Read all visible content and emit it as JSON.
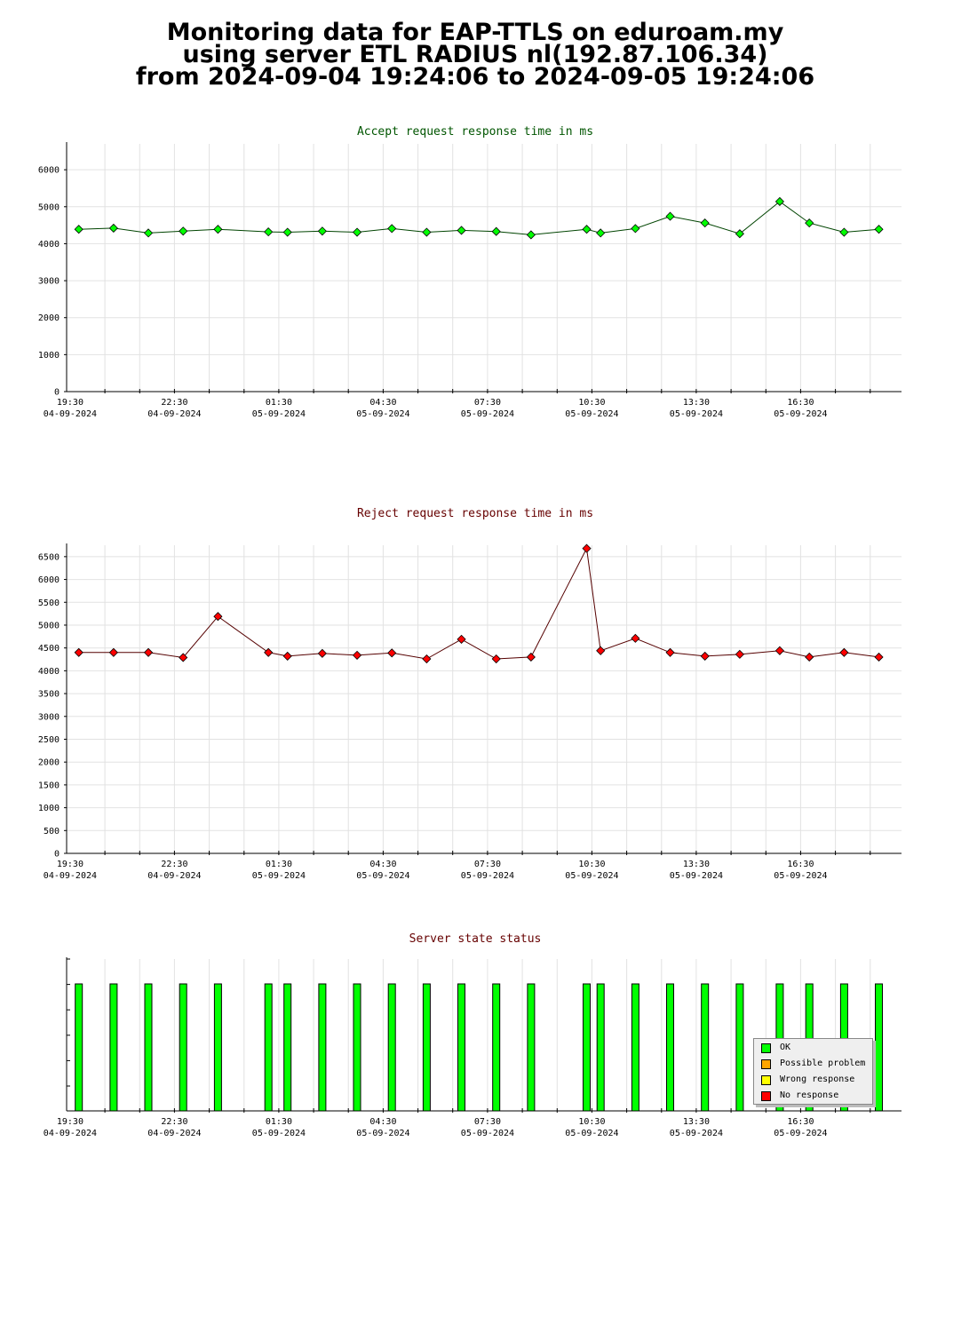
{
  "title": {
    "line1": "Monitoring data for EAP-TTLS on eduroam.my",
    "line2": "using server ETL RADIUS nl(192.87.106.34)",
    "line3": "from 2024-09-04 19:24:06 to 2024-09-05 19:24:06"
  },
  "colors": {
    "accept_series": "#00ff00",
    "reject_series": "#ff0000",
    "accept_title": "#005500",
    "reject_title": "#660000",
    "ok": "#00ff00",
    "possible_problem": "#ffa500",
    "wrong_response": "#ffff00",
    "no_response": "#ff0000"
  },
  "x_axis_ticks": [
    {
      "time": "19:30",
      "date": "04-09-2024"
    },
    {
      "time": "22:30",
      "date": "04-09-2024"
    },
    {
      "time": "01:30",
      "date": "05-09-2024"
    },
    {
      "time": "04:30",
      "date": "05-09-2024"
    },
    {
      "time": "07:30",
      "date": "05-09-2024"
    },
    {
      "time": "10:30",
      "date": "05-09-2024"
    },
    {
      "time": "13:30",
      "date": "05-09-2024"
    },
    {
      "time": "16:30",
      "date": "05-09-2024"
    }
  ],
  "legend": {
    "items": [
      {
        "label": "OK",
        "color": "#00ff00"
      },
      {
        "label": "Possible problem",
        "color": "#ffa500"
      },
      {
        "label": "Wrong response",
        "color": "#ffff00"
      },
      {
        "label": "No response",
        "color": "#ff0000"
      }
    ]
  },
  "chart_data": [
    {
      "type": "line",
      "title": "Accept request response time in ms",
      "x_unit": "hours since 2024-09-04 19:24:06",
      "xlim": [
        0,
        24
      ],
      "ylim": [
        0,
        6700
      ],
      "yticks": [
        0,
        1000,
        2000,
        3000,
        4000,
        5000,
        6000
      ],
      "grid": true,
      "points": [
        {
          "x": 0.35,
          "y": 4390
        },
        {
          "x": 1.35,
          "y": 4420
        },
        {
          "x": 2.35,
          "y": 4290
        },
        {
          "x": 3.35,
          "y": 4340
        },
        {
          "x": 4.35,
          "y": 4390
        },
        {
          "x": 5.8,
          "y": 4320
        },
        {
          "x": 6.35,
          "y": 4310
        },
        {
          "x": 7.35,
          "y": 4340
        },
        {
          "x": 8.35,
          "y": 4310
        },
        {
          "x": 9.35,
          "y": 4410
        },
        {
          "x": 10.35,
          "y": 4310
        },
        {
          "x": 11.35,
          "y": 4360
        },
        {
          "x": 12.35,
          "y": 4330
        },
        {
          "x": 13.35,
          "y": 4240
        },
        {
          "x": 14.95,
          "y": 4390
        },
        {
          "x": 15.35,
          "y": 4290
        },
        {
          "x": 16.35,
          "y": 4410
        },
        {
          "x": 17.35,
          "y": 4740
        },
        {
          "x": 18.35,
          "y": 4560
        },
        {
          "x": 19.35,
          "y": 4270
        },
        {
          "x": 20.5,
          "y": 5140
        },
        {
          "x": 21.35,
          "y": 4560
        },
        {
          "x": 22.35,
          "y": 4310
        },
        {
          "x": 23.35,
          "y": 4390
        }
      ]
    },
    {
      "type": "line",
      "title": "Reject request response time in ms",
      "x_unit": "hours since 2024-09-04 19:24:06",
      "xlim": [
        0,
        24
      ],
      "ylim": [
        0,
        6750
      ],
      "yticks": [
        0,
        500,
        1000,
        1500,
        2000,
        2500,
        3000,
        3500,
        4000,
        4500,
        5000,
        5500,
        6000,
        6500
      ],
      "grid": true,
      "points": [
        {
          "x": 0.35,
          "y": 4400
        },
        {
          "x": 1.35,
          "y": 4400
        },
        {
          "x": 2.35,
          "y": 4400
        },
        {
          "x": 3.35,
          "y": 4290
        },
        {
          "x": 4.35,
          "y": 5190
        },
        {
          "x": 5.8,
          "y": 4400
        },
        {
          "x": 6.35,
          "y": 4320
        },
        {
          "x": 7.35,
          "y": 4380
        },
        {
          "x": 8.35,
          "y": 4340
        },
        {
          "x": 9.35,
          "y": 4390
        },
        {
          "x": 10.35,
          "y": 4260
        },
        {
          "x": 11.35,
          "y": 4690
        },
        {
          "x": 12.35,
          "y": 4260
        },
        {
          "x": 13.35,
          "y": 4300
        },
        {
          "x": 14.95,
          "y": 6680
        },
        {
          "x": 15.35,
          "y": 4440
        },
        {
          "x": 16.35,
          "y": 4710
        },
        {
          "x": 17.35,
          "y": 4400
        },
        {
          "x": 18.35,
          "y": 4320
        },
        {
          "x": 19.35,
          "y": 4360
        },
        {
          "x": 20.5,
          "y": 4440
        },
        {
          "x": 21.35,
          "y": 4300
        },
        {
          "x": 22.35,
          "y": 4400
        },
        {
          "x": 23.35,
          "y": 4300
        }
      ]
    },
    {
      "type": "bar",
      "title": "Server state status",
      "x_unit": "hours since 2024-09-04 19:24:06",
      "xlim": [
        0,
        24
      ],
      "legend_position": "bottom-right",
      "bars": [
        {
          "x": 0.35,
          "status": "OK"
        },
        {
          "x": 1.35,
          "status": "OK"
        },
        {
          "x": 2.35,
          "status": "OK"
        },
        {
          "x": 3.35,
          "status": "OK"
        },
        {
          "x": 4.35,
          "status": "OK"
        },
        {
          "x": 5.8,
          "status": "OK"
        },
        {
          "x": 6.35,
          "status": "OK"
        },
        {
          "x": 7.35,
          "status": "OK"
        },
        {
          "x": 8.35,
          "status": "OK"
        },
        {
          "x": 9.35,
          "status": "OK"
        },
        {
          "x": 10.35,
          "status": "OK"
        },
        {
          "x": 11.35,
          "status": "OK"
        },
        {
          "x": 12.35,
          "status": "OK"
        },
        {
          "x": 13.35,
          "status": "OK"
        },
        {
          "x": 14.95,
          "status": "OK"
        },
        {
          "x": 15.35,
          "status": "OK"
        },
        {
          "x": 16.35,
          "status": "OK"
        },
        {
          "x": 17.35,
          "status": "OK"
        },
        {
          "x": 18.35,
          "status": "OK"
        },
        {
          "x": 19.35,
          "status": "OK"
        },
        {
          "x": 20.5,
          "status": "OK"
        },
        {
          "x": 21.35,
          "status": "OK"
        },
        {
          "x": 22.35,
          "status": "OK"
        },
        {
          "x": 23.35,
          "status": "OK"
        }
      ]
    }
  ]
}
